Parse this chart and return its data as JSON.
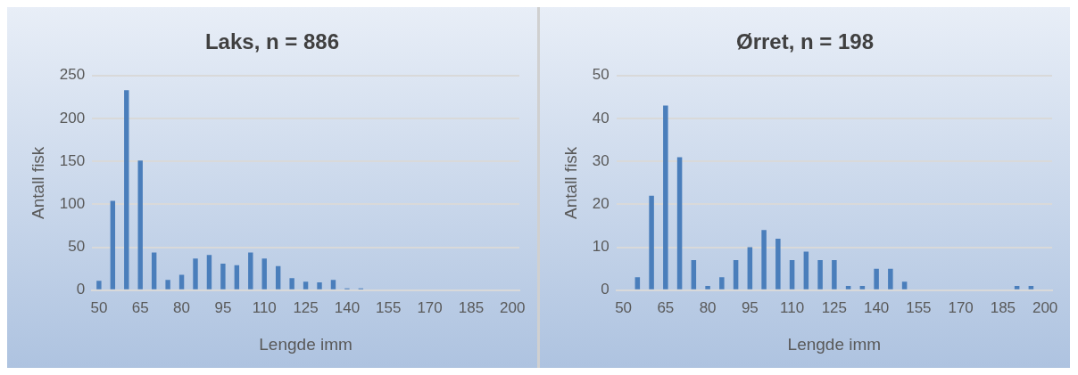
{
  "chart_data": [
    {
      "type": "bar",
      "title": "Laks, n = 886",
      "xlabel": "Lengde imm",
      "ylabel": "Antall fisk",
      "categories": [
        "50",
        null,
        null,
        "65",
        null,
        null,
        "80",
        null,
        null,
        "95",
        null,
        null,
        "110",
        null,
        null,
        "125",
        null,
        null,
        "140",
        null,
        null,
        "155",
        null,
        null,
        "170",
        null,
        null,
        "185",
        null,
        null,
        "200"
      ],
      "values": [
        11,
        104,
        233,
        151,
        44,
        12,
        18,
        37,
        41,
        31,
        29,
        44,
        37,
        28,
        14,
        10,
        9,
        12,
        2,
        2,
        0,
        0,
        0,
        0,
        0,
        0,
        0,
        0,
        0,
        0,
        0
      ],
      "color": "#4a7ebb",
      "ylim": [
        0,
        250
      ],
      "yticks": [
        0,
        50,
        100,
        150,
        200,
        250
      ],
      "grid": "y"
    },
    {
      "type": "bar",
      "title": "Ørret, n = 198",
      "xlabel": "Lengde imm",
      "ylabel": "Antall fisk",
      "categories": [
        "50",
        null,
        null,
        "65",
        null,
        null,
        "80",
        null,
        null,
        "95",
        null,
        null,
        "110",
        null,
        null,
        "125",
        null,
        null,
        "140",
        null,
        null,
        "155",
        null,
        null,
        "170",
        null,
        null,
        "185",
        null,
        null,
        "200"
      ],
      "values": [
        0,
        3,
        22,
        43,
        31,
        7,
        1,
        3,
        7,
        10,
        14,
        12,
        7,
        9,
        7,
        7,
        1,
        1,
        5,
        5,
        2,
        0,
        0,
        0,
        0,
        0,
        0,
        0,
        1,
        1,
        0
      ],
      "color": "#4a7ebb",
      "ylim": [
        0,
        50
      ],
      "yticks": [
        0,
        10,
        20,
        30,
        40,
        50
      ],
      "grid": "y"
    }
  ]
}
